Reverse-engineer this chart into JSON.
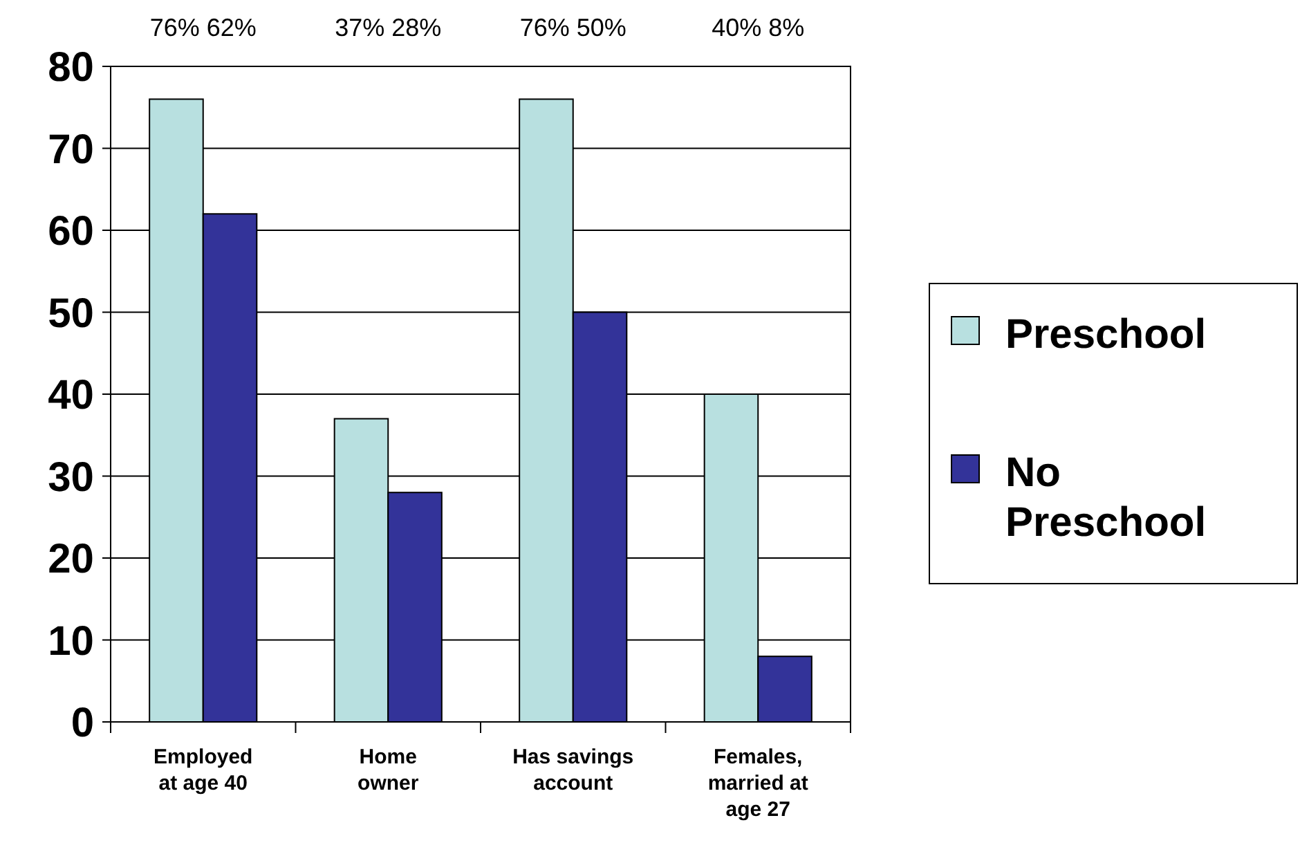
{
  "chart_data": {
    "type": "bar",
    "categories": [
      "Employed\nat age 40",
      "Home\nowner",
      "Has savings\naccount",
      "Females,\nmarried at\nage 27"
    ],
    "series": [
      {
        "name": "Preschool",
        "color": "#b8e0e0",
        "values": [
          76,
          37,
          76,
          40
        ]
      },
      {
        "name": "No Preschool",
        "color": "#333399",
        "values": [
          62,
          28,
          50,
          8
        ]
      }
    ],
    "annotations": [
      "76% 62%",
      "37% 28%",
      "76% 50%",
      "40% 8%"
    ],
    "ylim": [
      0,
      80
    ],
    "yticks": [
      0,
      10,
      20,
      30,
      40,
      50,
      60,
      70,
      80
    ],
    "grid": "y",
    "legend": "right"
  }
}
